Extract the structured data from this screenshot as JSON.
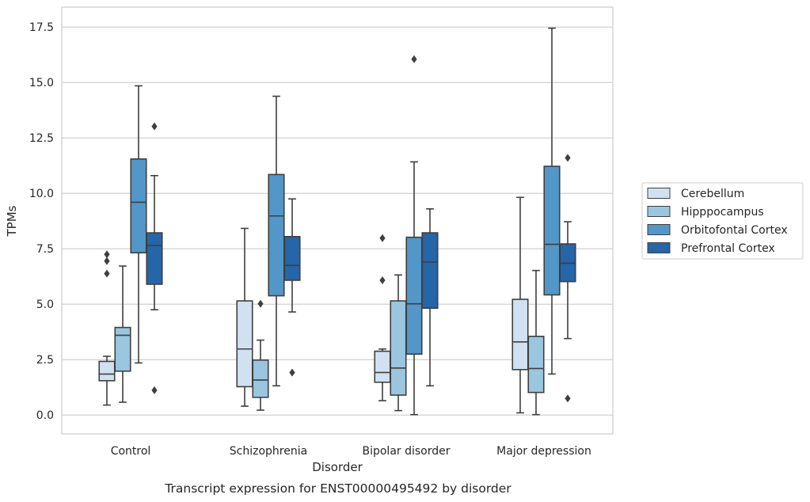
{
  "caption": "Transcript expression for ENST00000495492 by disorder",
  "chart_data": {
    "type": "box",
    "title": "",
    "xlabel": "Disorder",
    "ylabel": "TPMs",
    "ylim": [
      -0.85,
      18.4
    ],
    "yticks": [
      "0.0",
      "2.5",
      "5.0",
      "7.5",
      "10.0",
      "12.5",
      "15.0",
      "17.5"
    ],
    "grid": "horizontal",
    "legend_position": "right",
    "categories": [
      "Control",
      "Schizophrenia",
      "Bipolar disorder",
      "Major depression"
    ],
    "series": [
      {
        "name": "Cerebellum",
        "color": "#d1e1f1",
        "boxes": [
          {
            "whislo": 0.45,
            "q1": 1.55,
            "med": 1.85,
            "q3": 2.42,
            "whishi": 2.65,
            "fliers": [
              6.38,
              6.95,
              7.25
            ]
          },
          {
            "whislo": 0.4,
            "q1": 1.28,
            "med": 2.98,
            "q3": 5.15,
            "whishi": 8.42,
            "fliers": []
          },
          {
            "whislo": 0.65,
            "q1": 1.48,
            "med": 1.92,
            "q3": 2.88,
            "whishi": 2.98,
            "fliers": [
              6.08,
              7.98
            ]
          },
          {
            "whislo": 0.1,
            "q1": 2.05,
            "med": 3.3,
            "q3": 5.22,
            "whishi": 9.82,
            "fliers": []
          }
        ]
      },
      {
        "name": "Hipppocampus",
        "color": "#9ac6e0",
        "boxes": [
          {
            "whislo": 0.58,
            "q1": 1.98,
            "med": 3.6,
            "q3": 3.95,
            "whishi": 6.72,
            "fliers": []
          },
          {
            "whislo": 0.22,
            "q1": 0.8,
            "med": 1.58,
            "q3": 2.48,
            "whishi": 3.38,
            "fliers": [
              5.02
            ]
          },
          {
            "whislo": 0.2,
            "q1": 0.9,
            "med": 2.12,
            "q3": 5.15,
            "whishi": 6.32,
            "fliers": []
          },
          {
            "whislo": 0.02,
            "q1": 1.02,
            "med": 2.1,
            "q3": 3.55,
            "whishi": 6.52,
            "fliers": []
          }
        ]
      },
      {
        "name": "Orbitofontal Cortex",
        "color": "#5297c8",
        "boxes": [
          {
            "whislo": 2.35,
            "q1": 7.32,
            "med": 9.6,
            "q3": 11.55,
            "whishi": 14.85,
            "fliers": []
          },
          {
            "whislo": 1.32,
            "q1": 5.38,
            "med": 8.98,
            "q3": 10.85,
            "whishi": 14.38,
            "fliers": []
          },
          {
            "whislo": 0.02,
            "q1": 2.75,
            "med": 5.02,
            "q3": 8.02,
            "whishi": 11.42,
            "fliers": [
              16.05
            ]
          },
          {
            "whislo": 1.85,
            "q1": 5.42,
            "med": 7.7,
            "q3": 11.22,
            "whishi": 17.45,
            "fliers": []
          }
        ]
      },
      {
        "name": "Prefrontal Cortex",
        "color": "#2565a8",
        "boxes": [
          {
            "whislo": 4.75,
            "q1": 5.9,
            "med": 7.65,
            "q3": 8.22,
            "whishi": 10.8,
            "fliers": [
              1.12,
              13.02
            ]
          },
          {
            "whislo": 4.65,
            "q1": 6.08,
            "med": 6.75,
            "q3": 8.05,
            "whishi": 9.75,
            "fliers": [
              1.92
            ]
          },
          {
            "whislo": 1.32,
            "q1": 4.82,
            "med": 6.9,
            "q3": 8.22,
            "whishi": 9.3,
            "fliers": []
          },
          {
            "whislo": 3.45,
            "q1": 6.02,
            "med": 6.85,
            "q3": 7.72,
            "whishi": 8.72,
            "fliers": [
              0.75,
              11.6
            ]
          }
        ]
      }
    ]
  }
}
